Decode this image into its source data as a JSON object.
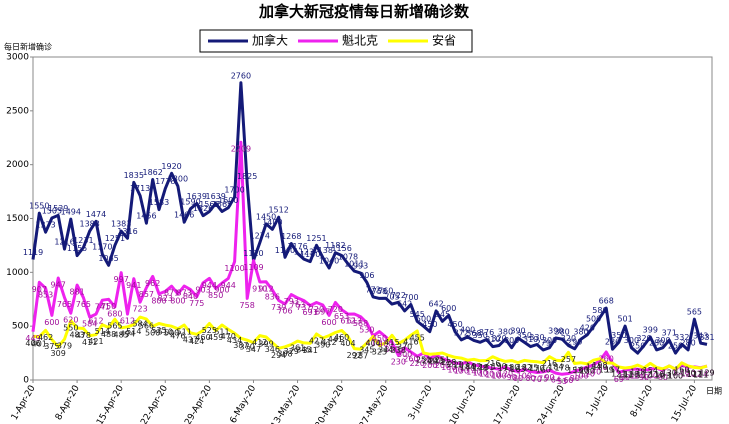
{
  "chart_data": {
    "type": "line",
    "title": "加拿大新冠疫情每日新增确诊数",
    "y_label": "每日新增确诊",
    "x_label": "日期",
    "categories": [
      "1-Apr-20",
      null,
      null,
      null,
      null,
      null,
      null,
      "8-Apr-20",
      null,
      null,
      null,
      null,
      null,
      null,
      "15-Apr-20",
      null,
      null,
      null,
      null,
      null,
      null,
      "22-Apr-20",
      null,
      null,
      null,
      null,
      null,
      null,
      "29-Apr-20",
      null,
      null,
      null,
      null,
      null,
      null,
      "6-May-20",
      null,
      null,
      null,
      null,
      null,
      null,
      "13-May-20",
      null,
      null,
      null,
      null,
      null,
      null,
      "20-May-20",
      null,
      null,
      null,
      null,
      null,
      null,
      "27-May-20",
      null,
      null,
      null,
      null,
      null,
      null,
      "3-Jun-20",
      null,
      null,
      null,
      null,
      null,
      null,
      "10-Jun-20",
      null,
      null,
      null,
      null,
      null,
      null,
      "17-Jun-20",
      null,
      null,
      null,
      null,
      null,
      null,
      "24-Jun-20",
      null,
      null,
      null,
      null,
      null,
      null,
      "1-Jul-20",
      null,
      null,
      null,
      null,
      null,
      null,
      "8-Jul-20",
      null,
      null,
      null,
      null,
      null,
      null,
      "15-Jul-20",
      null,
      null
    ],
    "series": [
      {
        "name": "加拿大",
        "color": "#141a78",
        "label_color": "#141a78",
        "values": [
          1119,
          1550,
          1373,
          1505,
          1529,
          1216,
          1494,
          1155,
          1231,
          1383,
          1474,
          1170,
          1065,
          1251,
          1383,
          1316,
          1835,
          1713,
          1456,
          1862,
          1583,
          1778,
          1920,
          1800,
          1466,
          1590,
          1639,
          1526,
          1565,
          1639,
          1565,
          1600,
          1700,
          2760,
          1825,
          1110,
          1274,
          1450,
          1400,
          1512,
          1140,
          1268,
          1176,
          1123,
          1100,
          1251,
          1138,
          1040,
          1182,
          1156,
          1078,
          1011,
          993,
          906,
          772,
          758,
          760,
          705,
          722,
          642,
          700,
          545,
          500,
          450,
          642,
          545,
          600,
          450,
          372,
          400,
          368,
          350,
          376,
          310,
          320,
          380,
          300,
          390,
          350,
          310,
          330,
          279,
          300,
          390,
          380,
          320,
          290,
          380,
          420,
          500,
          580,
          668,
          286,
          350,
          501,
          300,
          250,
          320,
          399,
          280,
          300,
          371,
          250,
          332,
          280,
          565,
          343,
          331
        ]
      },
      {
        "name": "魁北克",
        "color": "#ee22ee",
        "label_color": "#a0109a",
        "values": [
          449,
          907,
          853,
          600,
          947,
          765,
          620,
          881,
          765,
          584,
          612,
          741,
          750,
          680,
          997,
          612,
          941,
          723,
          857,
          962,
          800,
          823,
          871,
          800,
          873,
          840,
          775,
          903,
          944,
          850,
          900,
          944,
          1100,
          2209,
          758,
          1109,
          910,
          912,
          836,
          739,
          706,
          793,
          763,
          737,
          691,
          720,
          697,
          600,
          720,
          653,
          612,
          613,
          588,
          530,
          410,
          450,
          400,
          350,
          230,
          300,
          260,
          220,
          250,
          200,
          230,
          200,
          180,
          160,
          150,
          170,
          140,
          130,
          120,
          110,
          100,
          120,
          90,
          80,
          100,
          80,
          70,
          75,
          90,
          64,
          53,
          60,
          80,
          100,
          120,
          140,
          180,
          260,
          157,
          69,
          89,
          102,
          100,
          90,
          100,
          110,
          90,
          131,
          100,
          138,
          120,
          122,
          114,
          129
        ]
      },
      {
        "name": "安省",
        "color": "#ffff00",
        "label_color": "#222222",
        "values": [
          406,
          401,
          462,
          375,
          309,
          379,
          550,
          483,
          478,
          411,
          421,
          514,
          488,
          565,
          485,
          494,
          514,
          584,
          566,
          500,
          525,
          510,
          500,
          476,
          511,
          437,
          424,
          460,
          525,
          459,
          511,
          470,
          434,
          387,
          370,
          347,
          412,
          399,
          346,
          294,
          308,
          329,
          361,
          345,
          341,
          427,
          390,
          412,
          441,
          460,
          404,
          292,
          287,
          345,
          404,
          323,
          344,
          415,
          338,
          370,
          416,
          455,
          251,
          240,
          243,
          251,
          228,
          211,
          203,
          184,
          192,
          178,
          181,
          216,
          190,
          173,
          180,
          163,
          182,
          175,
          170,
          160,
          216,
          184,
          178,
          257,
          153,
          160,
          150,
          184,
          198,
          159,
          157,
          121,
          111,
          118,
          138,
          112,
          154,
          116,
          103,
          130,
          100,
          160,
          130,
          117,
          111,
          129
        ]
      }
    ],
    "ylim": [
      0,
      3000
    ],
    "yticks": [
      0,
      500,
      1000,
      1500,
      2000,
      2500,
      3000
    ]
  }
}
